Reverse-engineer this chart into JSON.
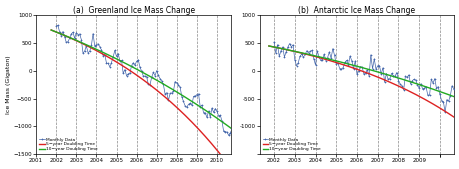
{
  "title_a": "(a)  Greenland Ice Mass Change",
  "title_b": "(b)  Antarctic Ice Mass Change",
  "ylabel": "Ice Mass (Gigaton)",
  "ylim": [
    -1500,
    1000
  ],
  "yticks": [
    -1500,
    -1000,
    -500,
    0,
    500,
    1000
  ],
  "xlim_a": [
    2001.3,
    2010.7
  ],
  "xlim_b": [
    2001.3,
    2010.7
  ],
  "xticks_a": [
    2001,
    2002,
    2003,
    2004,
    2005,
    2006,
    2007,
    2008,
    2009,
    2010
  ],
  "xticklabels_a": [
    "2001",
    "2002",
    "2003",
    "2004",
    "2005",
    "2006",
    "2007",
    "2008",
    "2009",
    "2010"
  ],
  "xticks_b": [
    2002,
    2003,
    2004,
    2005,
    2006,
    2007,
    2008,
    2009,
    2010,
    2010
  ],
  "xticklabels_b": [
    "2002",
    "2003",
    "2004",
    "2005",
    "2006",
    "2007",
    "2008",
    "2009",
    "2010",
    ""
  ],
  "vline_years": [
    2001,
    2002,
    2003,
    2004,
    2005,
    2006,
    2007,
    2008,
    2009,
    2010
  ],
  "legend_entries": [
    "Monthly Data",
    "5−year Doubling Time",
    "10−year Doubling Time"
  ],
  "color_monthly": "#4466aa",
  "color_5yr": "#dd2222",
  "color_10yr": "#22aa22",
  "background_color": "#ffffff",
  "gl_t_start": 2002.0,
  "gl_M0": 700.0,
  "gl_rate0": -145.0,
  "gl_tau5": 5.0,
  "gl_tau10": 10.0,
  "ant_t_start": 2002.0,
  "ant_M0": 430.0,
  "ant_rate0": -75.0,
  "ant_tau5": 5.0,
  "ant_tau10": 10.0
}
